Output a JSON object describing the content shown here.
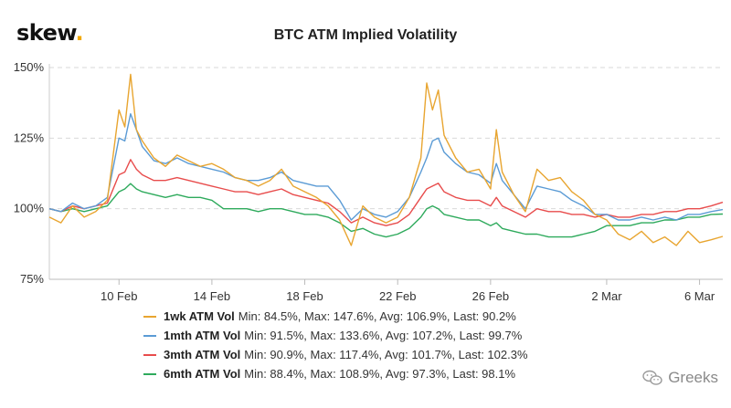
{
  "brand": {
    "name": "skew",
    "dot": "."
  },
  "chart_data": {
    "type": "line",
    "title": "BTC ATM Implied Volatility",
    "xlabel": "",
    "ylabel": "",
    "x_range": [
      "2020-02-07",
      "2020-03-07"
    ],
    "ylim": [
      75,
      150
    ],
    "y_ticks": [
      75,
      100,
      125,
      150
    ],
    "y_tick_labels": [
      "75%",
      "100%",
      "125%",
      "150%"
    ],
    "x_ticks": [
      "2020-02-10",
      "2020-02-14",
      "2020-02-18",
      "2020-02-22",
      "2020-02-26",
      "2020-03-02",
      "2020-03-06"
    ],
    "x_tick_labels": [
      "10 Feb",
      "14 Feb",
      "18 Feb",
      "22 Feb",
      "26 Feb",
      "2 Mar",
      "6 Mar"
    ],
    "grid": "horizontal dashed",
    "legend_position": "bottom",
    "series": [
      {
        "name": "1wk ATM Vol",
        "color": "#e8a530",
        "stats": "Min: 84.5%, Max: 147.6%, Avg: 106.9%, Last: 90.2%",
        "points": [
          [
            "2020-02-07",
            97
          ],
          [
            "2020-02-07T12:00",
            95
          ],
          [
            "2020-02-08",
            101
          ],
          [
            "2020-02-08T12:00",
            97
          ],
          [
            "2020-02-09",
            99
          ],
          [
            "2020-02-09T12:00",
            103
          ],
          [
            "2020-02-10",
            135
          ],
          [
            "2020-02-10T06:00",
            129
          ],
          [
            "2020-02-10T12:00",
            147.6
          ],
          [
            "2020-02-10T18:00",
            128
          ],
          [
            "2020-02-11",
            124
          ],
          [
            "2020-02-11T12:00",
            118
          ],
          [
            "2020-02-12",
            115
          ],
          [
            "2020-02-12T12:00",
            119
          ],
          [
            "2020-02-13",
            117
          ],
          [
            "2020-02-13T12:00",
            115
          ],
          [
            "2020-02-14",
            116
          ],
          [
            "2020-02-14T12:00",
            114
          ],
          [
            "2020-02-15",
            111
          ],
          [
            "2020-02-15T12:00",
            110
          ],
          [
            "2020-02-16",
            108
          ],
          [
            "2020-02-16T12:00",
            110
          ],
          [
            "2020-02-17",
            114
          ],
          [
            "2020-02-17T12:00",
            108
          ],
          [
            "2020-02-18",
            106
          ],
          [
            "2020-02-18T12:00",
            104
          ],
          [
            "2020-02-19",
            101
          ],
          [
            "2020-02-19T12:00",
            96
          ],
          [
            "2020-02-20",
            87
          ],
          [
            "2020-02-20T12:00",
            101
          ],
          [
            "2020-02-21",
            97
          ],
          [
            "2020-02-21T12:00",
            95
          ],
          [
            "2020-02-22",
            97
          ],
          [
            "2020-02-22T12:00",
            104
          ],
          [
            "2020-02-23",
            118
          ],
          [
            "2020-02-23T06:00",
            144.5
          ],
          [
            "2020-02-23T12:00",
            135
          ],
          [
            "2020-02-23T18:00",
            142
          ],
          [
            "2020-02-24",
            126
          ],
          [
            "2020-02-24T12:00",
            118
          ],
          [
            "2020-02-25",
            113
          ],
          [
            "2020-02-25T12:00",
            114
          ],
          [
            "2020-02-26",
            107
          ],
          [
            "2020-02-26T06:00",
            128
          ],
          [
            "2020-02-26T12:00",
            113
          ],
          [
            "2020-02-27",
            105
          ],
          [
            "2020-02-27T12:00",
            99
          ],
          [
            "2020-02-28",
            114
          ],
          [
            "2020-02-28T12:00",
            110
          ],
          [
            "2020-02-29",
            111
          ],
          [
            "2020-02-29T12:00",
            106
          ],
          [
            "2020-03-01",
            103
          ],
          [
            "2020-03-01T12:00",
            98
          ],
          [
            "2020-03-02",
            96
          ],
          [
            "2020-03-02T12:00",
            91
          ],
          [
            "2020-03-03",
            89
          ],
          [
            "2020-03-03T12:00",
            92
          ],
          [
            "2020-03-04",
            88
          ],
          [
            "2020-03-04T12:00",
            90
          ],
          [
            "2020-03-05",
            87
          ],
          [
            "2020-03-05T12:00",
            92
          ],
          [
            "2020-03-06",
            88
          ],
          [
            "2020-03-06T12:00",
            89
          ],
          [
            "2020-03-07",
            90.2
          ]
        ]
      },
      {
        "name": "1mth ATM Vol",
        "color": "#5b9bd5",
        "stats": "Min: 91.5%, Max: 133.6%, Avg: 107.2%, Last: 99.7%",
        "points": [
          [
            "2020-02-07",
            100
          ],
          [
            "2020-02-07T12:00",
            99
          ],
          [
            "2020-02-08",
            102
          ],
          [
            "2020-02-08T12:00",
            100
          ],
          [
            "2020-02-09",
            101
          ],
          [
            "2020-02-09T12:00",
            104
          ],
          [
            "2020-02-10",
            125
          ],
          [
            "2020-02-10T06:00",
            124
          ],
          [
            "2020-02-10T12:00",
            133.6
          ],
          [
            "2020-02-10T18:00",
            128
          ],
          [
            "2020-02-11",
            122
          ],
          [
            "2020-02-11T12:00",
            117
          ],
          [
            "2020-02-12",
            116
          ],
          [
            "2020-02-12T12:00",
            118
          ],
          [
            "2020-02-13",
            116
          ],
          [
            "2020-02-13T12:00",
            115
          ],
          [
            "2020-02-14",
            114
          ],
          [
            "2020-02-14T12:00",
            113
          ],
          [
            "2020-02-15",
            111
          ],
          [
            "2020-02-15T12:00",
            110
          ],
          [
            "2020-02-16",
            110
          ],
          [
            "2020-02-16T12:00",
            111
          ],
          [
            "2020-02-17",
            113
          ],
          [
            "2020-02-17T12:00",
            110
          ],
          [
            "2020-02-18",
            109
          ],
          [
            "2020-02-18T12:00",
            108
          ],
          [
            "2020-02-19",
            108
          ],
          [
            "2020-02-19T12:00",
            103
          ],
          [
            "2020-02-20",
            96
          ],
          [
            "2020-02-20T12:00",
            100
          ],
          [
            "2020-02-21",
            98
          ],
          [
            "2020-02-21T12:00",
            97
          ],
          [
            "2020-02-22",
            99
          ],
          [
            "2020-02-22T12:00",
            104
          ],
          [
            "2020-02-23",
            113
          ],
          [
            "2020-02-23T06:00",
            118
          ],
          [
            "2020-02-23T12:00",
            124
          ],
          [
            "2020-02-23T18:00",
            125
          ],
          [
            "2020-02-24",
            120
          ],
          [
            "2020-02-24T12:00",
            116
          ],
          [
            "2020-02-25",
            113
          ],
          [
            "2020-02-25T12:00",
            112
          ],
          [
            "2020-02-26",
            109
          ],
          [
            "2020-02-26T06:00",
            116
          ],
          [
            "2020-02-26T12:00",
            110
          ],
          [
            "2020-02-27",
            105
          ],
          [
            "2020-02-27T12:00",
            100
          ],
          [
            "2020-02-28",
            108
          ],
          [
            "2020-02-28T12:00",
            107
          ],
          [
            "2020-02-29",
            106
          ],
          [
            "2020-02-29T12:00",
            103
          ],
          [
            "2020-03-01",
            101
          ],
          [
            "2020-03-01T12:00",
            98
          ],
          [
            "2020-03-02",
            98
          ],
          [
            "2020-03-02T12:00",
            96
          ],
          [
            "2020-03-03",
            96
          ],
          [
            "2020-03-03T12:00",
            97
          ],
          [
            "2020-03-04",
            96
          ],
          [
            "2020-03-04T12:00",
            97
          ],
          [
            "2020-03-05",
            96
          ],
          [
            "2020-03-05T12:00",
            98
          ],
          [
            "2020-03-06",
            98
          ],
          [
            "2020-03-06T12:00",
            99
          ],
          [
            "2020-03-07",
            99.7
          ]
        ]
      },
      {
        "name": "3mth ATM Vol",
        "color": "#e84c4c",
        "stats": "Min: 90.9%, Max: 117.4%, Avg: 101.7%, Last: 102.3%",
        "points": [
          [
            "2020-02-07",
            100
          ],
          [
            "2020-02-07T12:00",
            99
          ],
          [
            "2020-02-08",
            101
          ],
          [
            "2020-02-08T12:00",
            100
          ],
          [
            "2020-02-09",
            101
          ],
          [
            "2020-02-09T12:00",
            102
          ],
          [
            "2020-02-10",
            112
          ],
          [
            "2020-02-10T06:00",
            113
          ],
          [
            "2020-02-10T12:00",
            117.4
          ],
          [
            "2020-02-10T18:00",
            114
          ],
          [
            "2020-02-11",
            112
          ],
          [
            "2020-02-11T12:00",
            110
          ],
          [
            "2020-02-12",
            110
          ],
          [
            "2020-02-12T12:00",
            111
          ],
          [
            "2020-02-13",
            110
          ],
          [
            "2020-02-13T12:00",
            109
          ],
          [
            "2020-02-14",
            108
          ],
          [
            "2020-02-14T12:00",
            107
          ],
          [
            "2020-02-15",
            106
          ],
          [
            "2020-02-15T12:00",
            106
          ],
          [
            "2020-02-16",
            105
          ],
          [
            "2020-02-16T12:00",
            106
          ],
          [
            "2020-02-17",
            107
          ],
          [
            "2020-02-17T12:00",
            105
          ],
          [
            "2020-02-18",
            104
          ],
          [
            "2020-02-18T12:00",
            103
          ],
          [
            "2020-02-19",
            102
          ],
          [
            "2020-02-19T12:00",
            99
          ],
          [
            "2020-02-20",
            95
          ],
          [
            "2020-02-20T12:00",
            97
          ],
          [
            "2020-02-21",
            95
          ],
          [
            "2020-02-21T12:00",
            94
          ],
          [
            "2020-02-22",
            95
          ],
          [
            "2020-02-22T12:00",
            98
          ],
          [
            "2020-02-23",
            104
          ],
          [
            "2020-02-23T06:00",
            107
          ],
          [
            "2020-02-23T12:00",
            108
          ],
          [
            "2020-02-23T18:00",
            109
          ],
          [
            "2020-02-24",
            106
          ],
          [
            "2020-02-24T12:00",
            104
          ],
          [
            "2020-02-25",
            103
          ],
          [
            "2020-02-25T12:00",
            103
          ],
          [
            "2020-02-26",
            101
          ],
          [
            "2020-02-26T06:00",
            104
          ],
          [
            "2020-02-26T12:00",
            101
          ],
          [
            "2020-02-27",
            99
          ],
          [
            "2020-02-27T12:00",
            97
          ],
          [
            "2020-02-28",
            100
          ],
          [
            "2020-02-28T12:00",
            99
          ],
          [
            "2020-02-29",
            99
          ],
          [
            "2020-02-29T12:00",
            98
          ],
          [
            "2020-03-01",
            98
          ],
          [
            "2020-03-01T12:00",
            97
          ],
          [
            "2020-03-02",
            98
          ],
          [
            "2020-03-02T12:00",
            97
          ],
          [
            "2020-03-03",
            97
          ],
          [
            "2020-03-03T12:00",
            98
          ],
          [
            "2020-03-04",
            98
          ],
          [
            "2020-03-04T12:00",
            99
          ],
          [
            "2020-03-05",
            99
          ],
          [
            "2020-03-05T12:00",
            100
          ],
          [
            "2020-03-06",
            100
          ],
          [
            "2020-03-06T12:00",
            101
          ],
          [
            "2020-03-07",
            102.3
          ]
        ]
      },
      {
        "name": "6mth ATM Vol",
        "color": "#2eaa5c",
        "stats": "Min: 88.4%, Max: 108.9%, Avg: 97.3%, Last: 98.1%",
        "points": [
          [
            "2020-02-07",
            100
          ],
          [
            "2020-02-07T12:00",
            99
          ],
          [
            "2020-02-08",
            100
          ],
          [
            "2020-02-08T12:00",
            99
          ],
          [
            "2020-02-09",
            100
          ],
          [
            "2020-02-09T12:00",
            101
          ],
          [
            "2020-02-10",
            106
          ],
          [
            "2020-02-10T06:00",
            107
          ],
          [
            "2020-02-10T12:00",
            108.9
          ],
          [
            "2020-02-10T18:00",
            107
          ],
          [
            "2020-02-11",
            106
          ],
          [
            "2020-02-11T12:00",
            105
          ],
          [
            "2020-02-12",
            104
          ],
          [
            "2020-02-12T12:00",
            105
          ],
          [
            "2020-02-13",
            104
          ],
          [
            "2020-02-13T12:00",
            104
          ],
          [
            "2020-02-14",
            103
          ],
          [
            "2020-02-14T12:00",
            100
          ],
          [
            "2020-02-15",
            100
          ],
          [
            "2020-02-15T12:00",
            100
          ],
          [
            "2020-02-16",
            99
          ],
          [
            "2020-02-16T12:00",
            100
          ],
          [
            "2020-02-17",
            100
          ],
          [
            "2020-02-17T12:00",
            99
          ],
          [
            "2020-02-18",
            98
          ],
          [
            "2020-02-18T12:00",
            98
          ],
          [
            "2020-02-19",
            97
          ],
          [
            "2020-02-19T12:00",
            95
          ],
          [
            "2020-02-20",
            92
          ],
          [
            "2020-02-20T12:00",
            93
          ],
          [
            "2020-02-21",
            91
          ],
          [
            "2020-02-21T12:00",
            90
          ],
          [
            "2020-02-22",
            91
          ],
          [
            "2020-02-22T12:00",
            93
          ],
          [
            "2020-02-23",
            97
          ],
          [
            "2020-02-23T06:00",
            100
          ],
          [
            "2020-02-23T12:00",
            101
          ],
          [
            "2020-02-23T18:00",
            100
          ],
          [
            "2020-02-24",
            98
          ],
          [
            "2020-02-24T12:00",
            97
          ],
          [
            "2020-02-25",
            96
          ],
          [
            "2020-02-25T12:00",
            96
          ],
          [
            "2020-02-26",
            94
          ],
          [
            "2020-02-26T06:00",
            95
          ],
          [
            "2020-02-26T12:00",
            93
          ],
          [
            "2020-02-27",
            92
          ],
          [
            "2020-02-27T12:00",
            91
          ],
          [
            "2020-02-28",
            91
          ],
          [
            "2020-02-28T12:00",
            90
          ],
          [
            "2020-02-29",
            90
          ],
          [
            "2020-02-29T12:00",
            90
          ],
          [
            "2020-03-01",
            91
          ],
          [
            "2020-03-01T12:00",
            92
          ],
          [
            "2020-03-02",
            94
          ],
          [
            "2020-03-02T12:00",
            94
          ],
          [
            "2020-03-03",
            94
          ],
          [
            "2020-03-03T12:00",
            95
          ],
          [
            "2020-03-04",
            95
          ],
          [
            "2020-03-04T12:00",
            96
          ],
          [
            "2020-03-05",
            96
          ],
          [
            "2020-03-05T12:00",
            97
          ],
          [
            "2020-03-06",
            97
          ],
          [
            "2020-03-06T12:00",
            98
          ],
          [
            "2020-03-07",
            98.1
          ]
        ]
      }
    ]
  },
  "watermark": {
    "text": "Greeks",
    "icon": "wechat-icon"
  }
}
